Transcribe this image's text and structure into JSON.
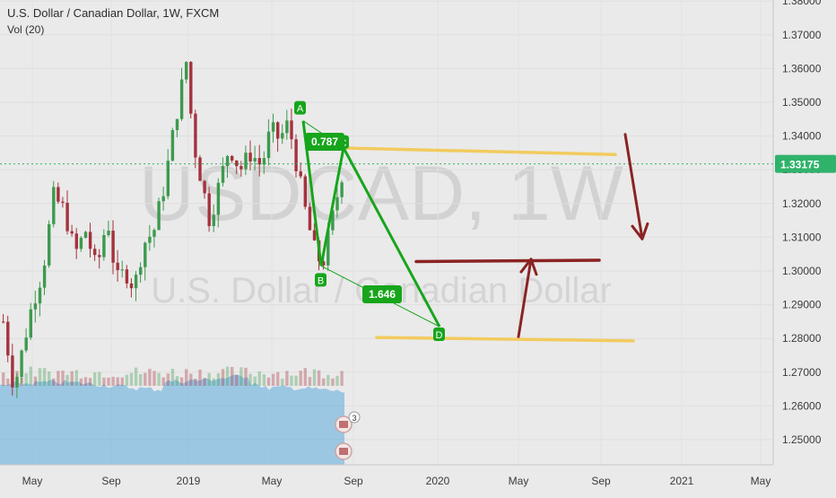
{
  "header": {
    "symbol_title": "U.S. Dollar / Canadian Dollar, 1W, FXCM",
    "volume_label": "Vol (20)"
  },
  "watermark": {
    "ticker": "USDCAD, 1W",
    "name": "U.S. Dollar / Canadian Dollar"
  },
  "colors": {
    "background": "#eaeaea",
    "bull": "#3d9a4e",
    "bear": "#a5323c",
    "pattern": "#17a51c",
    "label_bg": "#17a51c",
    "level_yellow": "#f2cb5e",
    "level_red": "#8b2323",
    "arrow": "#8b2323",
    "price_line": "#2fb36b",
    "volume": "#5aa9dd"
  },
  "chart_data": {
    "type": "candlestick",
    "symbol": "USDCAD",
    "interval": "1W",
    "source": "FXCM",
    "y_axis": {
      "min": 1.245,
      "max": 1.38,
      "ticks": [
        "1.38000",
        "1.37000",
        "1.36000",
        "1.35000",
        "1.34000",
        "1.33000",
        "1.32000",
        "1.31000",
        "1.30000",
        "1.29000",
        "1.28000",
        "1.27000",
        "1.26000",
        "1.25000"
      ]
    },
    "x_axis": {
      "labels": [
        "May",
        "Sep",
        "2019",
        "May",
        "Sep",
        "2020",
        "May",
        "Sep",
        "2021",
        "May"
      ]
    },
    "current_price": {
      "value": 1.33175,
      "label": "1.33175"
    },
    "harmonic_pattern": {
      "points": [
        {
          "label": "A",
          "price": 1.3445
        },
        {
          "label": "B",
          "price": 1.3015
        },
        {
          "label": "C",
          "price": 1.3365
        },
        {
          "label": "D",
          "price": 1.2835
        }
      ],
      "ratios": [
        {
          "label": "0.787",
          "between": "A-C"
        },
        {
          "label": "1.646",
          "between": "B-D"
        }
      ]
    },
    "levels": [
      {
        "name": "upper-yellow",
        "from": 1.3365,
        "to": 1.3345
      },
      {
        "name": "red-resistance",
        "from": 1.3028,
        "to": 1.3032
      },
      {
        "name": "lower-yellow",
        "from": 1.2803,
        "to": 1.2793
      }
    ],
    "annotations": [
      {
        "type": "arrow-down",
        "from": 1.3405,
        "to": 1.3095
      },
      {
        "type": "arrow-up",
        "from": 1.2805,
        "to": 1.3035
      }
    ],
    "badges": [
      {
        "text": "3"
      }
    ]
  }
}
